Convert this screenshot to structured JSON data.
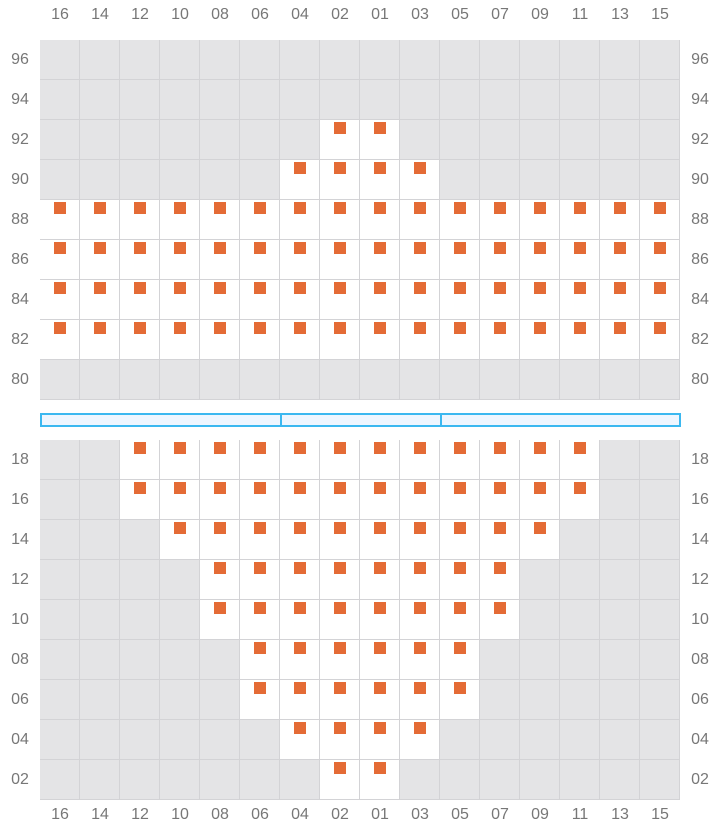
{
  "columns": [
    "16",
    "14",
    "12",
    "10",
    "08",
    "06",
    "04",
    "02",
    "01",
    "03",
    "05",
    "07",
    "09",
    "11",
    "13",
    "15"
  ],
  "colors": {
    "seat": "#e46b35",
    "unavailable": "#e4e4e6",
    "available": "#ffffff",
    "divider": "#3bb8f0"
  },
  "sections": [
    {
      "rows": [
        {
          "label": "96",
          "seats": []
        },
        {
          "label": "94",
          "seats": []
        },
        {
          "label": "92",
          "seats": [
            "02",
            "01"
          ]
        },
        {
          "label": "90",
          "seats": [
            "04",
            "02",
            "01",
            "03"
          ]
        },
        {
          "label": "88",
          "seats": [
            "16",
            "14",
            "12",
            "10",
            "08",
            "06",
            "04",
            "02",
            "01",
            "03",
            "05",
            "07",
            "09",
            "11",
            "13",
            "15"
          ]
        },
        {
          "label": "86",
          "seats": [
            "16",
            "14",
            "12",
            "10",
            "08",
            "06",
            "04",
            "02",
            "01",
            "03",
            "05",
            "07",
            "09",
            "11",
            "13",
            "15"
          ]
        },
        {
          "label": "84",
          "seats": [
            "16",
            "14",
            "12",
            "10",
            "08",
            "06",
            "04",
            "02",
            "01",
            "03",
            "05",
            "07",
            "09",
            "11",
            "13",
            "15"
          ]
        },
        {
          "label": "82",
          "seats": [
            "16",
            "14",
            "12",
            "10",
            "08",
            "06",
            "04",
            "02",
            "01",
            "03",
            "05",
            "07",
            "09",
            "11",
            "13",
            "15"
          ]
        },
        {
          "label": "80",
          "seats": []
        }
      ]
    },
    {
      "rows": [
        {
          "label": "18",
          "seats": [
            "12",
            "10",
            "08",
            "06",
            "04",
            "02",
            "01",
            "03",
            "05",
            "07",
            "09",
            "11"
          ]
        },
        {
          "label": "16",
          "seats": [
            "12",
            "10",
            "08",
            "06",
            "04",
            "02",
            "01",
            "03",
            "05",
            "07",
            "09",
            "11"
          ]
        },
        {
          "label": "14",
          "seats": [
            "10",
            "08",
            "06",
            "04",
            "02",
            "01",
            "03",
            "05",
            "07",
            "09"
          ]
        },
        {
          "label": "12",
          "seats": [
            "08",
            "06",
            "04",
            "02",
            "01",
            "03",
            "05",
            "07"
          ]
        },
        {
          "label": "10",
          "seats": [
            "08",
            "06",
            "04",
            "02",
            "01",
            "03",
            "05",
            "07"
          ]
        },
        {
          "label": "08",
          "seats": [
            "06",
            "04",
            "02",
            "01",
            "03",
            "05"
          ]
        },
        {
          "label": "06",
          "seats": [
            "06",
            "04",
            "02",
            "01",
            "03",
            "05"
          ]
        },
        {
          "label": "04",
          "seats": [
            "04",
            "02",
            "01",
            "03"
          ]
        },
        {
          "label": "02",
          "seats": [
            "02",
            "01"
          ]
        }
      ]
    }
  ]
}
